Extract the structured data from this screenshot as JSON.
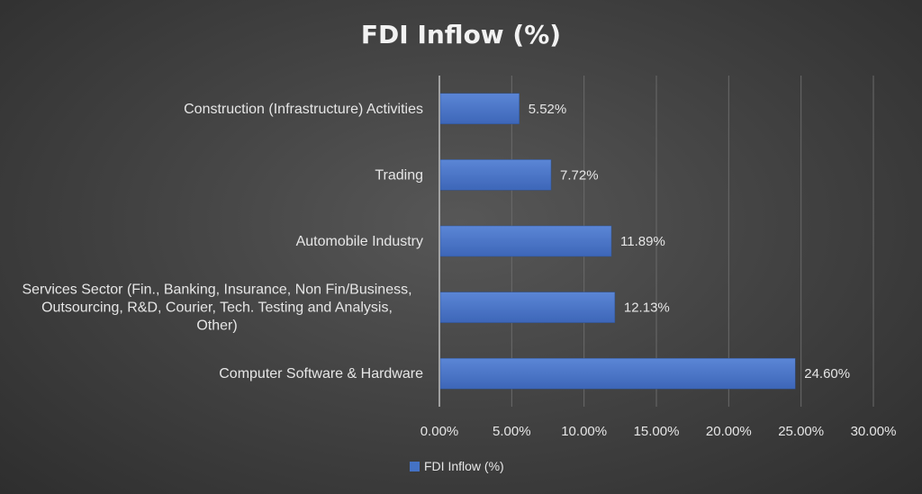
{
  "chart_data": {
    "type": "bar",
    "orientation": "horizontal",
    "title": "FDI Inflow (%)",
    "categories": [
      [
        "Construction (Infrastructure) Activities"
      ],
      [
        "Trading"
      ],
      [
        "Automobile Industry"
      ],
      [
        "Services Sector (Fin., Banking, Insurance, Non Fin/Business,",
        "Outsourcing, R&D, Courier, Tech. Testing and Analysis,",
        "Other)"
      ],
      [
        "Computer Software & Hardware"
      ]
    ],
    "series": [
      {
        "name": "FDI Inflow (%)",
        "values": [
          5.52,
          7.72,
          11.89,
          12.13,
          24.6
        ],
        "labels": [
          "5.52%",
          "7.72%",
          "11.89%",
          "12.13%",
          "24.60%"
        ]
      }
    ],
    "xlim": [
      0,
      30
    ],
    "xticks": [
      0,
      5,
      10,
      15,
      20,
      25,
      30
    ],
    "xtick_labels": [
      "0.00%",
      "5.00%",
      "10.00%",
      "15.00%",
      "20.00%",
      "25.00%",
      "30.00%"
    ],
    "grid": true,
    "legend": "bottom",
    "colors": {
      "bar": "#4472c4",
      "bar_light": "#5b86d6",
      "grid": "#6a6a6a",
      "axis": "#bfbfbf"
    }
  }
}
